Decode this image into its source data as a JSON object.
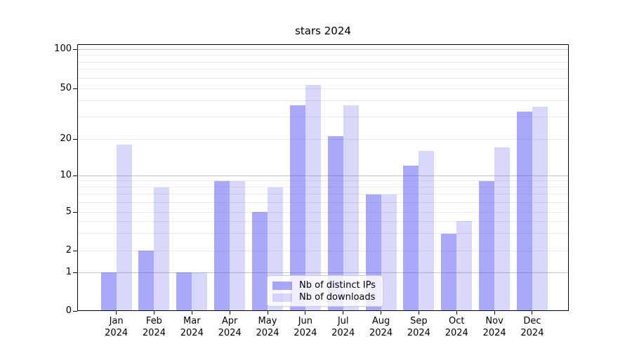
{
  "chart_data": {
    "type": "bar",
    "title": "stars 2024",
    "categories": [
      "Jan",
      "Feb",
      "Mar",
      "Apr",
      "May",
      "Jun",
      "Jul",
      "Aug",
      "Sep",
      "Oct",
      "Nov",
      "Dec"
    ],
    "category_year": "2024",
    "series": [
      {
        "name": "Nb of distinct IPs",
        "key": "distinct-ips",
        "color": "rgba(90,90,248,0.52)",
        "values": [
          1,
          2,
          1,
          9,
          5,
          37,
          21,
          7,
          12,
          3,
          9,
          33
        ]
      },
      {
        "name": "Nb of downloads",
        "key": "downloads",
        "color": "rgba(90,90,248,0.24)",
        "values": [
          18,
          8,
          1,
          9,
          8,
          53,
          37,
          7,
          16,
          4,
          17,
          36
        ]
      }
    ],
    "yaxis": {
      "ticks": [
        100,
        50,
        20,
        10,
        5,
        2,
        1,
        0
      ],
      "major_gridline_values": [
        100,
        10,
        1
      ],
      "minor_gridline_values": [
        90,
        80,
        70,
        60,
        50,
        40,
        30,
        20,
        9,
        8,
        7,
        6,
        5,
        4,
        3,
        2
      ],
      "scale": "log-like",
      "range": [
        0,
        100
      ]
    },
    "xlabel": "",
    "ylabel": "",
    "grid": {
      "major_color": "#c6c6c6",
      "minor_color": "#e9e9e9",
      "on": true
    },
    "legend": {
      "position": "lower-center"
    }
  }
}
